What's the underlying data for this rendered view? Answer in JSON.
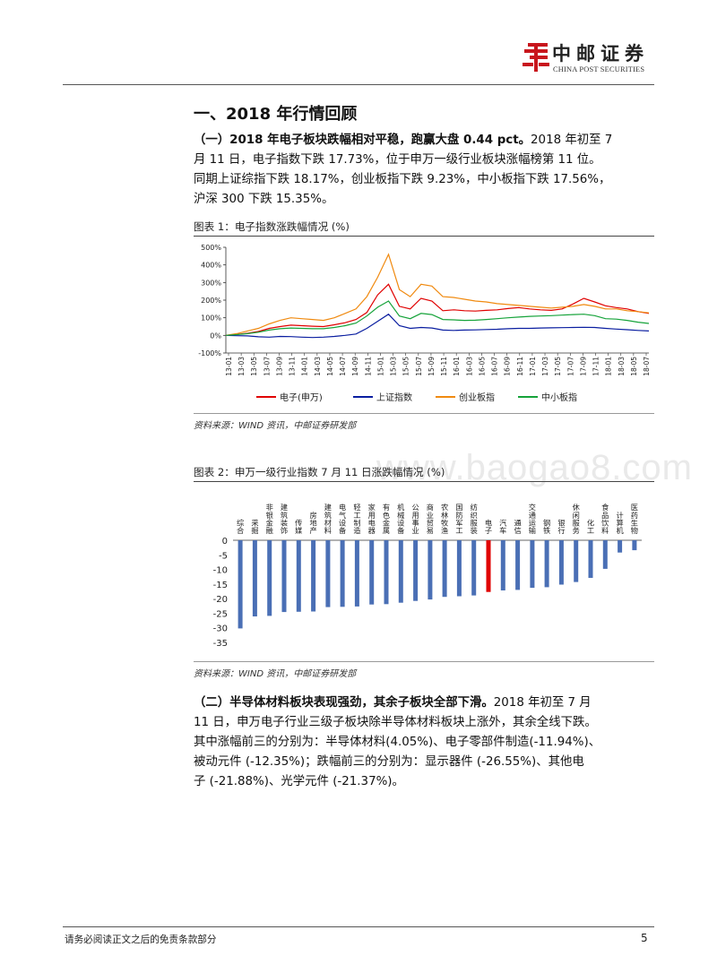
{
  "header": {
    "logo_cn": "中邮证券",
    "logo_en": "CHINA POST SECURITIES"
  },
  "section_title": "一、2018 年行情回顾",
  "para1": {
    "lead": "（一）2018 年电子板块跌幅相对平稳，跑赢大盘 0.44 pct。",
    "line1_rest": "2018 年初至 7",
    "line2": "月 11 日，电子指数下跌 17.73%，位于申万一级行业板块涨幅榜第 11 位。",
    "line3": "同期上证综指下跌 18.17%，创业板指下跌 9.23%，中小板指下跌 17.56%，",
    "line4": "沪深 300 下跌 15.35%。"
  },
  "figure1": {
    "caption": "图表 1：电子指数涨跌幅情况 (%)",
    "source": "资料来源：WIND 资讯，中邮证券研发部"
  },
  "figure2": {
    "caption": "图表 2：申万一级行业指数 7 月 11 日涨跌幅情况 (%)",
    "source": "资料来源：WIND 资讯，中邮证券研发部"
  },
  "watermark": "www.baogao8.com",
  "para2": {
    "lead": "（二）半导体材料板块表现强劲，其余子板块全部下滑。",
    "line1_rest": "2018 年初至 7 月",
    "line2": "11 日，申万电子行业三级子板块除半导体材料板块上涨外，其余全线下跌。",
    "line3": "其中涨幅前三的分别为：半导体材料(4.05%)、电子零部件制造(-11.94%)、",
    "line4": "被动元件 (-12.35%)；跌幅前三的分别为：显示器件 (-26.55%)、其他电",
    "line5": "子 (-21.88%)、光学元件 (-21.37%)。"
  },
  "footer": {
    "disclaimer": "请务必阅读正文之后的免责条款部分",
    "page": "5"
  },
  "chart_data": [
    {
      "type": "line",
      "title": "电子指数涨跌幅情况 (%)",
      "y_unit": "%",
      "ylim": [
        -100,
        500
      ],
      "yticks": [
        "500%",
        "400%",
        "300%",
        "200%",
        "100%",
        "0%",
        "-100%"
      ],
      "x_ticks": [
        "13-01",
        "13-03",
        "13-05",
        "13-07",
        "13-09",
        "13-11",
        "14-01",
        "14-03",
        "14-05",
        "14-07",
        "14-09",
        "14-11",
        "15-01",
        "15-03",
        "15-05",
        "15-07",
        "15-09",
        "15-11",
        "16-01",
        "16-03",
        "16-05",
        "16-07",
        "16-09",
        "16-11",
        "17-01",
        "17-03",
        "17-05",
        "17-07",
        "17-09",
        "17-11",
        "18-01",
        "18-03",
        "18-05",
        "18-07"
      ],
      "series": [
        {
          "name": "电子(申万)",
          "color": "#e00000",
          "values": [
            0,
            5,
            12,
            22,
            40,
            50,
            58,
            55,
            52,
            50,
            60,
            72,
            90,
            130,
            230,
            290,
            165,
            150,
            210,
            195,
            140,
            145,
            140,
            138,
            142,
            145,
            152,
            158,
            150,
            145,
            142,
            150,
            178,
            210,
            190,
            168,
            158,
            150,
            135,
            125
          ]
        },
        {
          "name": "上证指数",
          "color": "#0a1ea0",
          "values": [
            0,
            -2,
            -3,
            -8,
            -10,
            -6,
            -7,
            -10,
            -12,
            -10,
            -6,
            0,
            8,
            40,
            80,
            120,
            55,
            40,
            45,
            42,
            30,
            28,
            30,
            31,
            33,
            35,
            38,
            40,
            40,
            42,
            43,
            44,
            45,
            46,
            45,
            40,
            36,
            32,
            28,
            25
          ]
        },
        {
          "name": "创业板指",
          "color": "#f08a10",
          "values": [
            0,
            10,
            25,
            40,
            65,
            85,
            100,
            95,
            90,
            85,
            100,
            125,
            150,
            220,
            330,
            460,
            260,
            220,
            290,
            280,
            220,
            215,
            205,
            195,
            190,
            180,
            175,
            170,
            165,
            160,
            155,
            160,
            165,
            175,
            165,
            150,
            150,
            140,
            135,
            128
          ]
        },
        {
          "name": "中小板指",
          "color": "#16a33a",
          "values": [
            0,
            4,
            10,
            18,
            30,
            38,
            42,
            40,
            38,
            38,
            45,
            55,
            70,
            110,
            160,
            195,
            110,
            95,
            125,
            118,
            90,
            88,
            85,
            86,
            90,
            95,
            100,
            104,
            108,
            110,
            112,
            115,
            118,
            120,
            112,
            95,
            92,
            85,
            75,
            68
          ]
        }
      ]
    },
    {
      "type": "bar",
      "title": "申万一级行业指数 7 月 11 日涨跌幅情况 (%)",
      "ylim": [
        -35,
        0
      ],
      "yticks": [
        "0",
        "-5",
        "-10",
        "-15",
        "-20",
        "-25",
        "-30",
        "-35"
      ],
      "categories": [
        "综合",
        "采掘",
        "非银金融",
        "建筑装饰",
        "传媒",
        "房地产",
        "建筑材料",
        "电气设备",
        "轻工制造",
        "家用电器",
        "有色金属",
        "机械设备",
        "公用事业",
        "商业贸易",
        "农林牧渔",
        "国防军工",
        "纺织服装",
        "电子",
        "汽车",
        "通信",
        "交通运输",
        "钢铁",
        "银行",
        "休闲服务",
        "化工",
        "食品饮料",
        "计算机",
        "医药生物"
      ],
      "values": [
        -30.2,
        -26.1,
        -25.9,
        -24.6,
        -24.5,
        -24.4,
        -22.9,
        -22.8,
        -22.7,
        -22.0,
        -21.9,
        -21.4,
        -20.8,
        -20.3,
        -19.4,
        -19.2,
        -18.9,
        -17.7,
        -17.2,
        -17.0,
        -16.3,
        -16.1,
        -15.2,
        -14.3,
        -12.9,
        -9.8,
        -4.2,
        -3.4
      ],
      "bar_color": "#4a6fb5",
      "highlight_category": "电子",
      "highlight_color": "#e00000"
    }
  ]
}
